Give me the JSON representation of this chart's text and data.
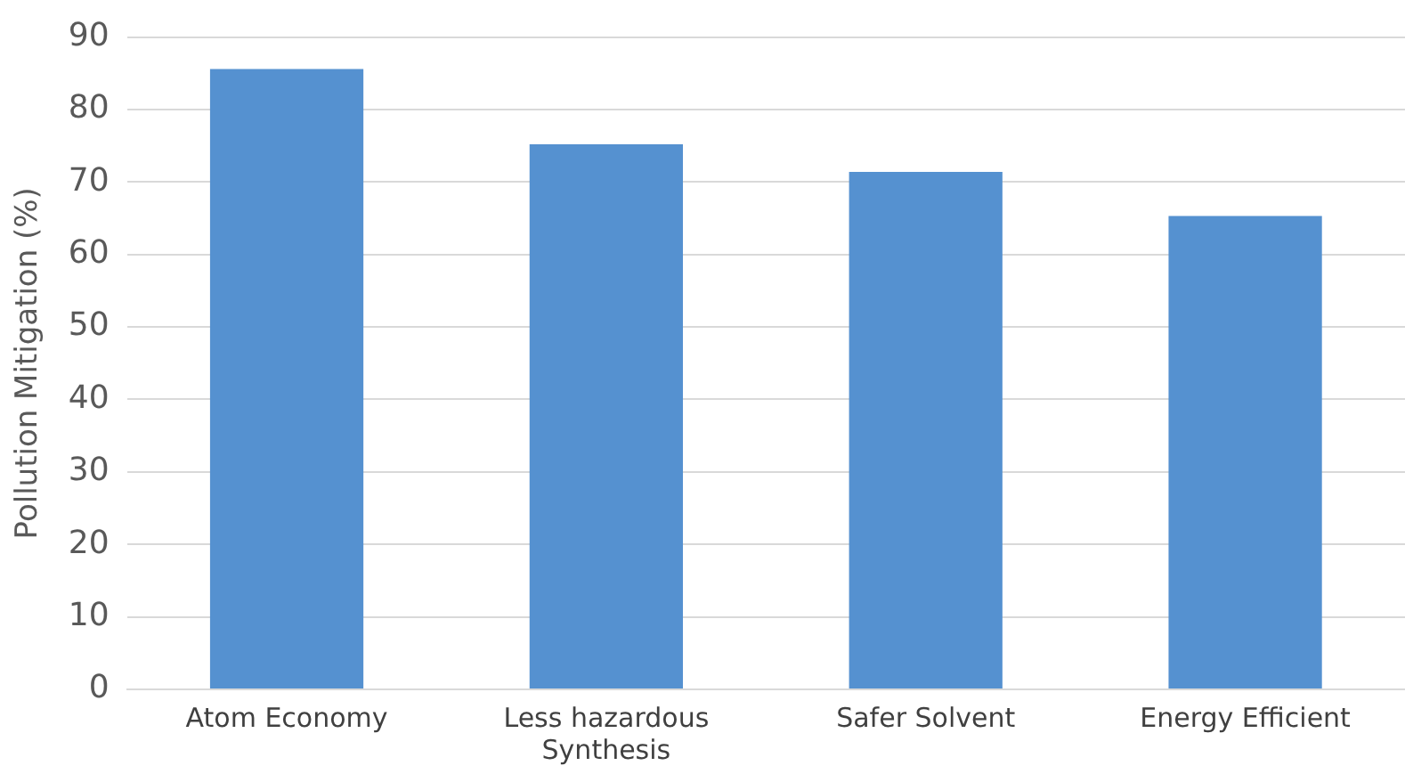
{
  "chart_data": {
    "type": "bar",
    "ylabel": "Pollution Mitigation (%)",
    "categories": [
      "Atom Economy",
      "Less hazardous Synthesis",
      "Safer Solvent",
      "Energy Efficient"
    ],
    "values": [
      85.6,
      75.2,
      71.4,
      65.3
    ],
    "color": "#5591d0",
    "ylim": [
      0,
      90
    ],
    "yticks": [
      0,
      10,
      20,
      30,
      40,
      50,
      60,
      70,
      80,
      90
    ],
    "grid": "y"
  }
}
